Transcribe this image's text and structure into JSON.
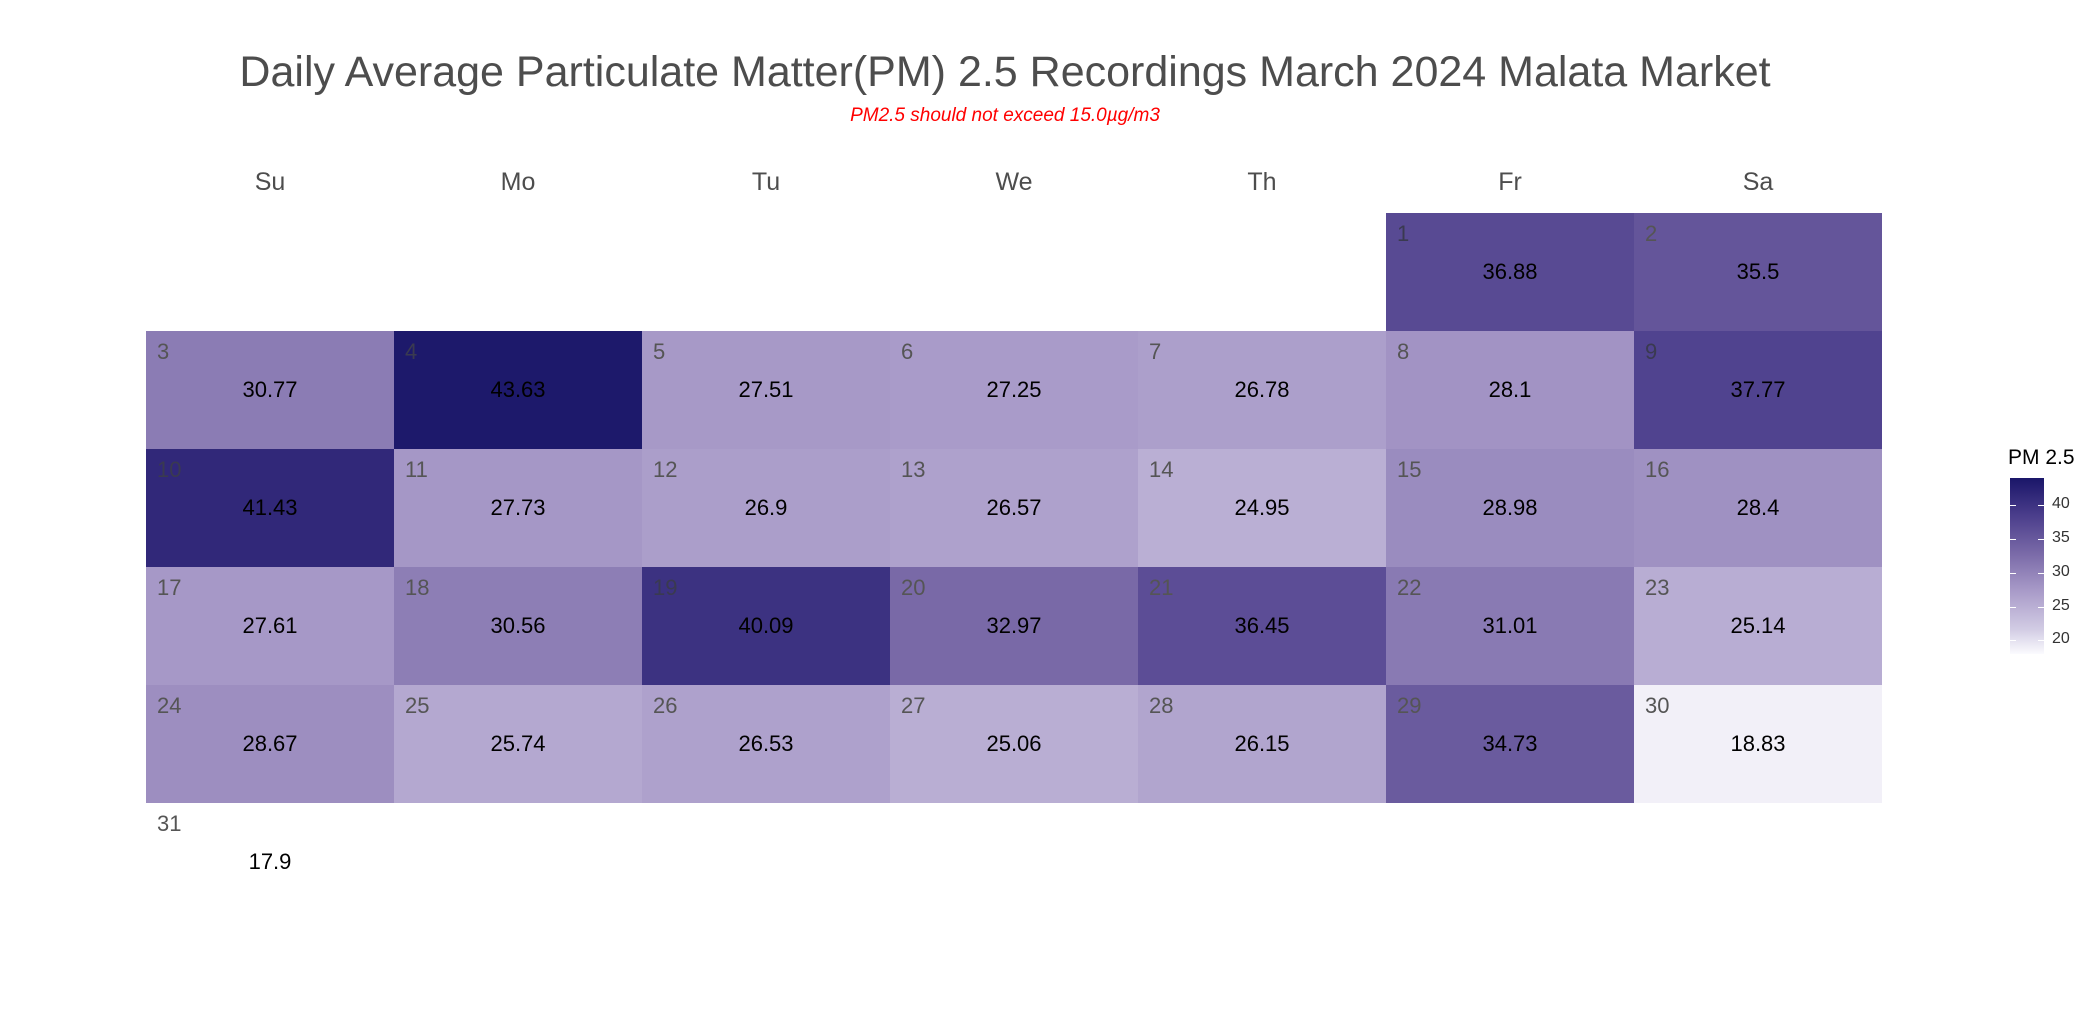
{
  "chart_data": {
    "type": "heatmap",
    "title": "Daily Average Particulate Matter(PM) 2.5 Recordings March 2024 Malata Market",
    "subtitle": "PM2.5 should not exceed 15.0µg/m3",
    "weekdays": [
      "Su",
      "Mo",
      "Tu",
      "We",
      "Th",
      "Fr",
      "Sa"
    ],
    "first_weekday_index": 5,
    "days": [
      {
        "day": "1",
        "value": 36.88,
        "label": "36.88"
      },
      {
        "day": "2",
        "value": 35.5,
        "label": "35.5"
      },
      {
        "day": "3",
        "value": 30.77,
        "label": "30.77"
      },
      {
        "day": "4",
        "value": 43.63,
        "label": "43.63"
      },
      {
        "day": "5",
        "value": 27.51,
        "label": "27.51"
      },
      {
        "day": "6",
        "value": 27.25,
        "label": "27.25"
      },
      {
        "day": "7",
        "value": 26.78,
        "label": "26.78"
      },
      {
        "day": "8",
        "value": 28.1,
        "label": "28.1"
      },
      {
        "day": "9",
        "value": 37.77,
        "label": "37.77"
      },
      {
        "day": "10",
        "value": 41.43,
        "label": "41.43"
      },
      {
        "day": "11",
        "value": 27.73,
        "label": "27.73"
      },
      {
        "day": "12",
        "value": 26.9,
        "label": "26.9"
      },
      {
        "day": "13",
        "value": 26.57,
        "label": "26.57"
      },
      {
        "day": "14",
        "value": 24.95,
        "label": "24.95"
      },
      {
        "day": "15",
        "value": 28.98,
        "label": "28.98"
      },
      {
        "day": "16",
        "value": 28.4,
        "label": "28.4"
      },
      {
        "day": "17",
        "value": 27.61,
        "label": "27.61"
      },
      {
        "day": "18",
        "value": 30.56,
        "label": "30.56"
      },
      {
        "day": "19",
        "value": 40.09,
        "label": "40.09"
      },
      {
        "day": "20",
        "value": 32.97,
        "label": "32.97"
      },
      {
        "day": "21",
        "value": 36.45,
        "label": "36.45"
      },
      {
        "day": "22",
        "value": 31.01,
        "label": "31.01"
      },
      {
        "day": "23",
        "value": 25.14,
        "label": "25.14"
      },
      {
        "day": "24",
        "value": 28.67,
        "label": "28.67"
      },
      {
        "day": "25",
        "value": 25.74,
        "label": "25.74"
      },
      {
        "day": "26",
        "value": 26.53,
        "label": "26.53"
      },
      {
        "day": "27",
        "value": 25.06,
        "label": "25.06"
      },
      {
        "day": "28",
        "value": 26.15,
        "label": "26.15"
      },
      {
        "day": "29",
        "value": 34.73,
        "label": "34.73"
      },
      {
        "day": "30",
        "value": 18.83,
        "label": "18.83"
      },
      {
        "day": "31",
        "value": 17.9,
        "label": "17.9",
        "filled": false
      }
    ],
    "legend": {
      "title": "PM 2.5",
      "position": "right",
      "ticks": [
        "40",
        "35",
        "30",
        "25",
        "20"
      ],
      "color_low": "#fbfbfe",
      "color_high": "#1a1669",
      "range": [
        18.0,
        44.0
      ]
    }
  }
}
